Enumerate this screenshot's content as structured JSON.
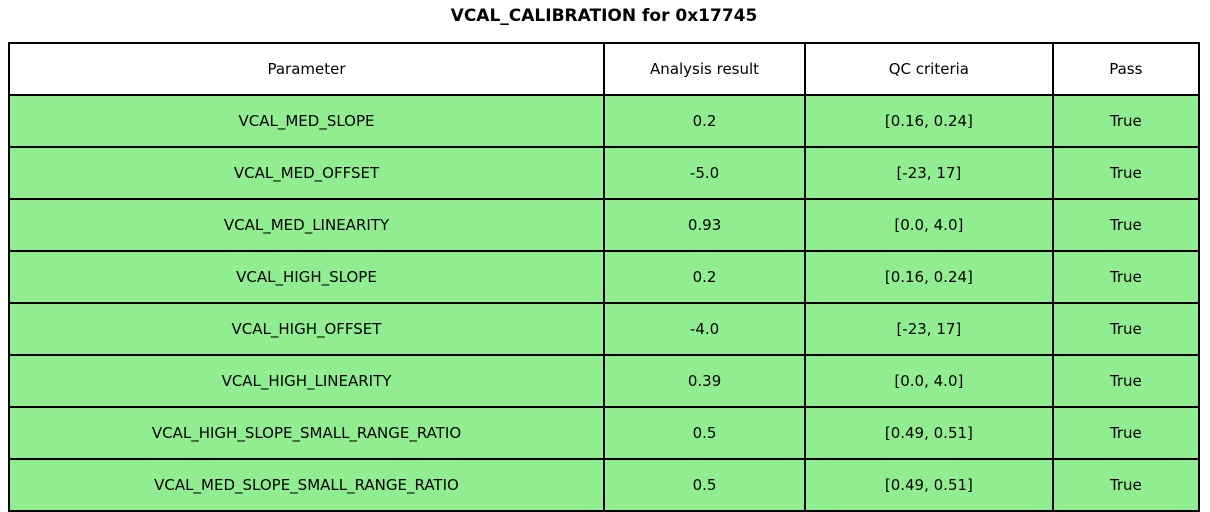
{
  "title": "VCAL_CALIBRATION for 0x17745",
  "colors": {
    "row_background": "#90EE90",
    "header_background": "#ffffff",
    "border": "#000000",
    "text": "#000000"
  },
  "chart_data": {
    "type": "table",
    "title": "VCAL_CALIBRATION for 0x17745",
    "columns": [
      "Parameter",
      "Analysis result",
      "QC criteria",
      "Pass"
    ],
    "rows": [
      [
        "VCAL_MED_SLOPE",
        "0.2",
        "[0.16, 0.24]",
        "True"
      ],
      [
        "VCAL_MED_OFFSET",
        "-5.0",
        "[-23, 17]",
        "True"
      ],
      [
        "VCAL_MED_LINEARITY",
        "0.93",
        "[0.0, 4.0]",
        "True"
      ],
      [
        "VCAL_HIGH_SLOPE",
        "0.2",
        "[0.16, 0.24]",
        "True"
      ],
      [
        "VCAL_HIGH_OFFSET",
        "-4.0",
        "[-23, 17]",
        "True"
      ],
      [
        "VCAL_HIGH_LINEARITY",
        "0.39",
        "[0.0, 4.0]",
        "True"
      ],
      [
        "VCAL_HIGH_SLOPE_SMALL_RANGE_RATIO",
        "0.5",
        "[0.49, 0.51]",
        "True"
      ],
      [
        "VCAL_MED_SLOPE_SMALL_RANGE_RATIO",
        "0.5",
        "[0.49, 0.51]",
        "True"
      ]
    ]
  }
}
